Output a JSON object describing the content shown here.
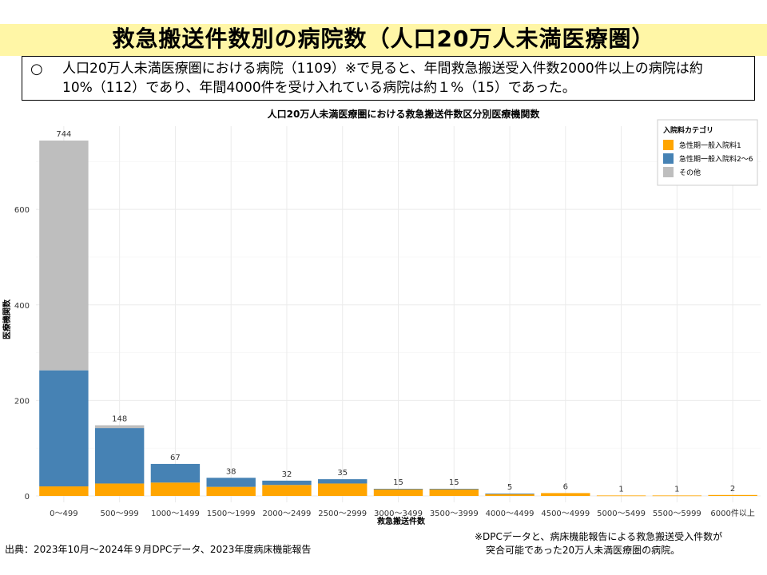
{
  "slide": {
    "title": "救急搬送件数別の病院数（人口20万人未満医療圏）",
    "note_bullet": "○",
    "note_text": "人口20万人未満医療圏における病院（1109）※で見ると、年間救急搬送受入件数2000件以上の病院は約10%（112）であり、年間4000件を受け入れている病院は約１%（15）であった。",
    "source": "出典：2023年10月～2024年９月DPCデータ、2023年度病床機能報告",
    "footnote_line1": "※DPCデータと、病床機能報告による救急搬送受入件数が",
    "footnote_line2": "突合可能であった20万人未満医療圏の病院。"
  },
  "chart_data": {
    "type": "bar",
    "stacked": true,
    "title": "人口20万人未満医療圏における救急搬送件数区分別医療機関数",
    "xlabel": "救急搬送件数",
    "ylabel": "医療機関数",
    "ylim": [
      0,
      750
    ],
    "yticks": [
      0,
      200,
      400,
      600
    ],
    "grid": true,
    "legend_title": "入院料カテゴリ",
    "legend_position": "top-right",
    "categories": [
      "0～499",
      "500～999",
      "1000～1499",
      "1500～1999",
      "2000～2499",
      "2500～2999",
      "3000～3499",
      "3500～3999",
      "4000～4499",
      "4500～4999",
      "5000～5499",
      "5500～5999",
      "6000件以上"
    ],
    "totals": [
      744,
      148,
      67,
      38,
      32,
      35,
      15,
      15,
      5,
      6,
      1,
      1,
      2
    ],
    "series": [
      {
        "name": "急性期一般入院料1",
        "color": "#ffa500",
        "values": [
          20,
          26,
          28,
          19,
          23,
          26,
          14,
          14,
          4,
          6,
          1,
          1,
          2
        ]
      },
      {
        "name": "急性期一般入院料2～6",
        "color": "#4682b4",
        "values": [
          243,
          116,
          39,
          19,
          9,
          9,
          1,
          1,
          1,
          0,
          0,
          0,
          0
        ]
      },
      {
        "name": "その他",
        "color": "#bebebe",
        "values": [
          481,
          6,
          0,
          0,
          0,
          0,
          0,
          0,
          0,
          0,
          0,
          0,
          0
        ]
      }
    ]
  }
}
